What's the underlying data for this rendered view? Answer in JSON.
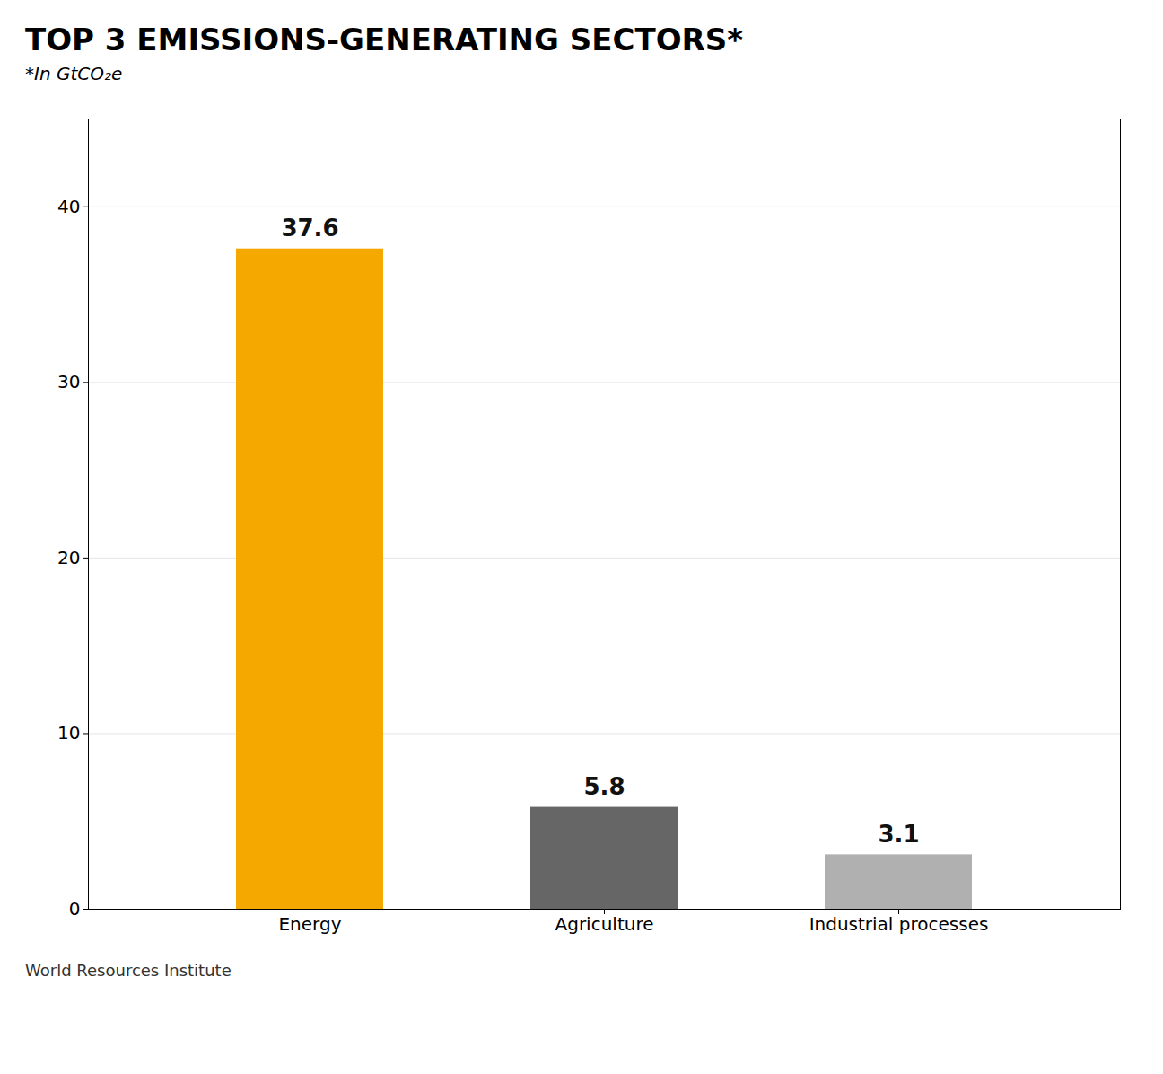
{
  "chart_data": {
    "type": "bar",
    "title": "TOP 3 EMISSIONS-GENERATING SECTORS*",
    "subtitle": "*In GtCO₂e",
    "caption": "World Resources Institute",
    "categories": [
      "Energy",
      "Agriculture",
      "Industrial processes"
    ],
    "values": [
      37.6,
      5.8,
      3.1
    ],
    "colors": [
      "#f5a800",
      "#666666",
      "#b0b0b0"
    ],
    "ylim": [
      0,
      45
    ],
    "yticks": [
      0,
      10,
      20,
      30,
      40
    ],
    "grid": true,
    "data_labels": true
  }
}
